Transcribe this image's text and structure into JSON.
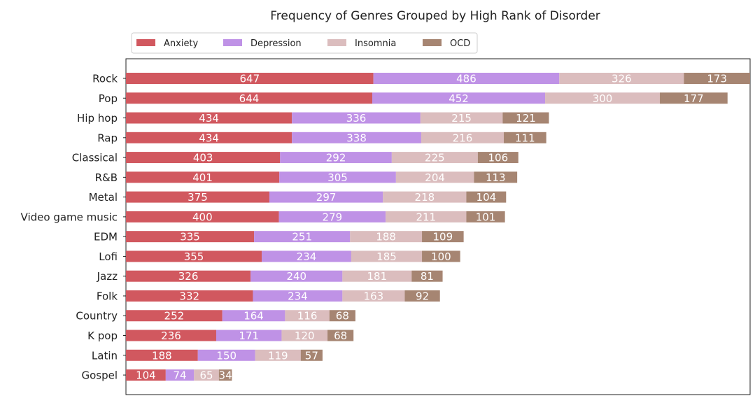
{
  "chart_data": {
    "type": "bar",
    "orientation": "horizontal",
    "stacked": true,
    "title": "Frequency of Genres Grouped by High Rank of Disorder",
    "xlabel": "",
    "ylabel": "",
    "xlim": [
      0,
      1632
    ],
    "grid": false,
    "x_ticks_visible": false,
    "legend_placement": "top-left",
    "legend_columns": 4,
    "categories": [
      "Rock",
      "Pop",
      "Hip hop",
      "Rap",
      "Classical",
      "R&B",
      "Metal",
      "Video game music",
      "EDM",
      "Lofi",
      "Jazz",
      "Folk",
      "Country",
      "K pop",
      "Latin",
      "Gospel"
    ],
    "series": [
      {
        "name": "Anxiety",
        "color": "#d1585f",
        "values": [
          647,
          644,
          434,
          434,
          403,
          401,
          375,
          400,
          335,
          355,
          326,
          332,
          252,
          236,
          188,
          104
        ]
      },
      {
        "name": "Depression",
        "color": "#bf92e6",
        "values": [
          486,
          452,
          336,
          338,
          292,
          305,
          297,
          279,
          251,
          234,
          240,
          234,
          164,
          171,
          150,
          74
        ]
      },
      {
        "name": "Insomnia",
        "color": "#dbbdbe",
        "values": [
          326,
          300,
          215,
          216,
          225,
          204,
          218,
          211,
          188,
          185,
          181,
          163,
          116,
          120,
          119,
          65
        ]
      },
      {
        "name": "OCD",
        "color": "#a68572",
        "values": [
          173,
          177,
          121,
          111,
          106,
          113,
          104,
          101,
          109,
          100,
          81,
          92,
          68,
          68,
          57,
          34
        ]
      }
    ],
    "data_label_color": "#ffffff"
  }
}
